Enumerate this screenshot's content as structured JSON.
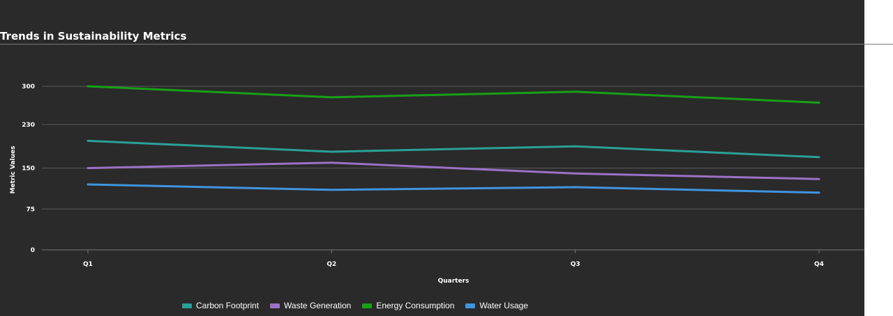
{
  "chart_data": {
    "type": "line",
    "title": "Trends in Sustainability Metrics",
    "xlabel": "Quarters",
    "ylabel": "Metric Values",
    "categories": [
      "Q1",
      "Q2",
      "Q3",
      "Q4"
    ],
    "yticks": [
      0,
      75,
      150,
      230,
      300
    ],
    "ylim": [
      0,
      300
    ],
    "grid": true,
    "legend_position": "bottom",
    "series": [
      {
        "name": "Carbon Footprint",
        "color": "#2aa198",
        "values": [
          200,
          180,
          190,
          170
        ]
      },
      {
        "name": "Waste Generation",
        "color": "#9b72c6",
        "values": [
          150,
          160,
          140,
          130
        ]
      },
      {
        "name": "Energy Consumption",
        "color": "#18a018",
        "values": [
          300,
          280,
          290,
          270
        ]
      },
      {
        "name": "Water Usage",
        "color": "#3f95e0",
        "values": [
          120,
          110,
          115,
          105
        ]
      }
    ]
  },
  "theme": {
    "background": "#2a2a2a",
    "text": "#ffffff",
    "grid": "#5a5a5a",
    "axis": "#777777"
  }
}
